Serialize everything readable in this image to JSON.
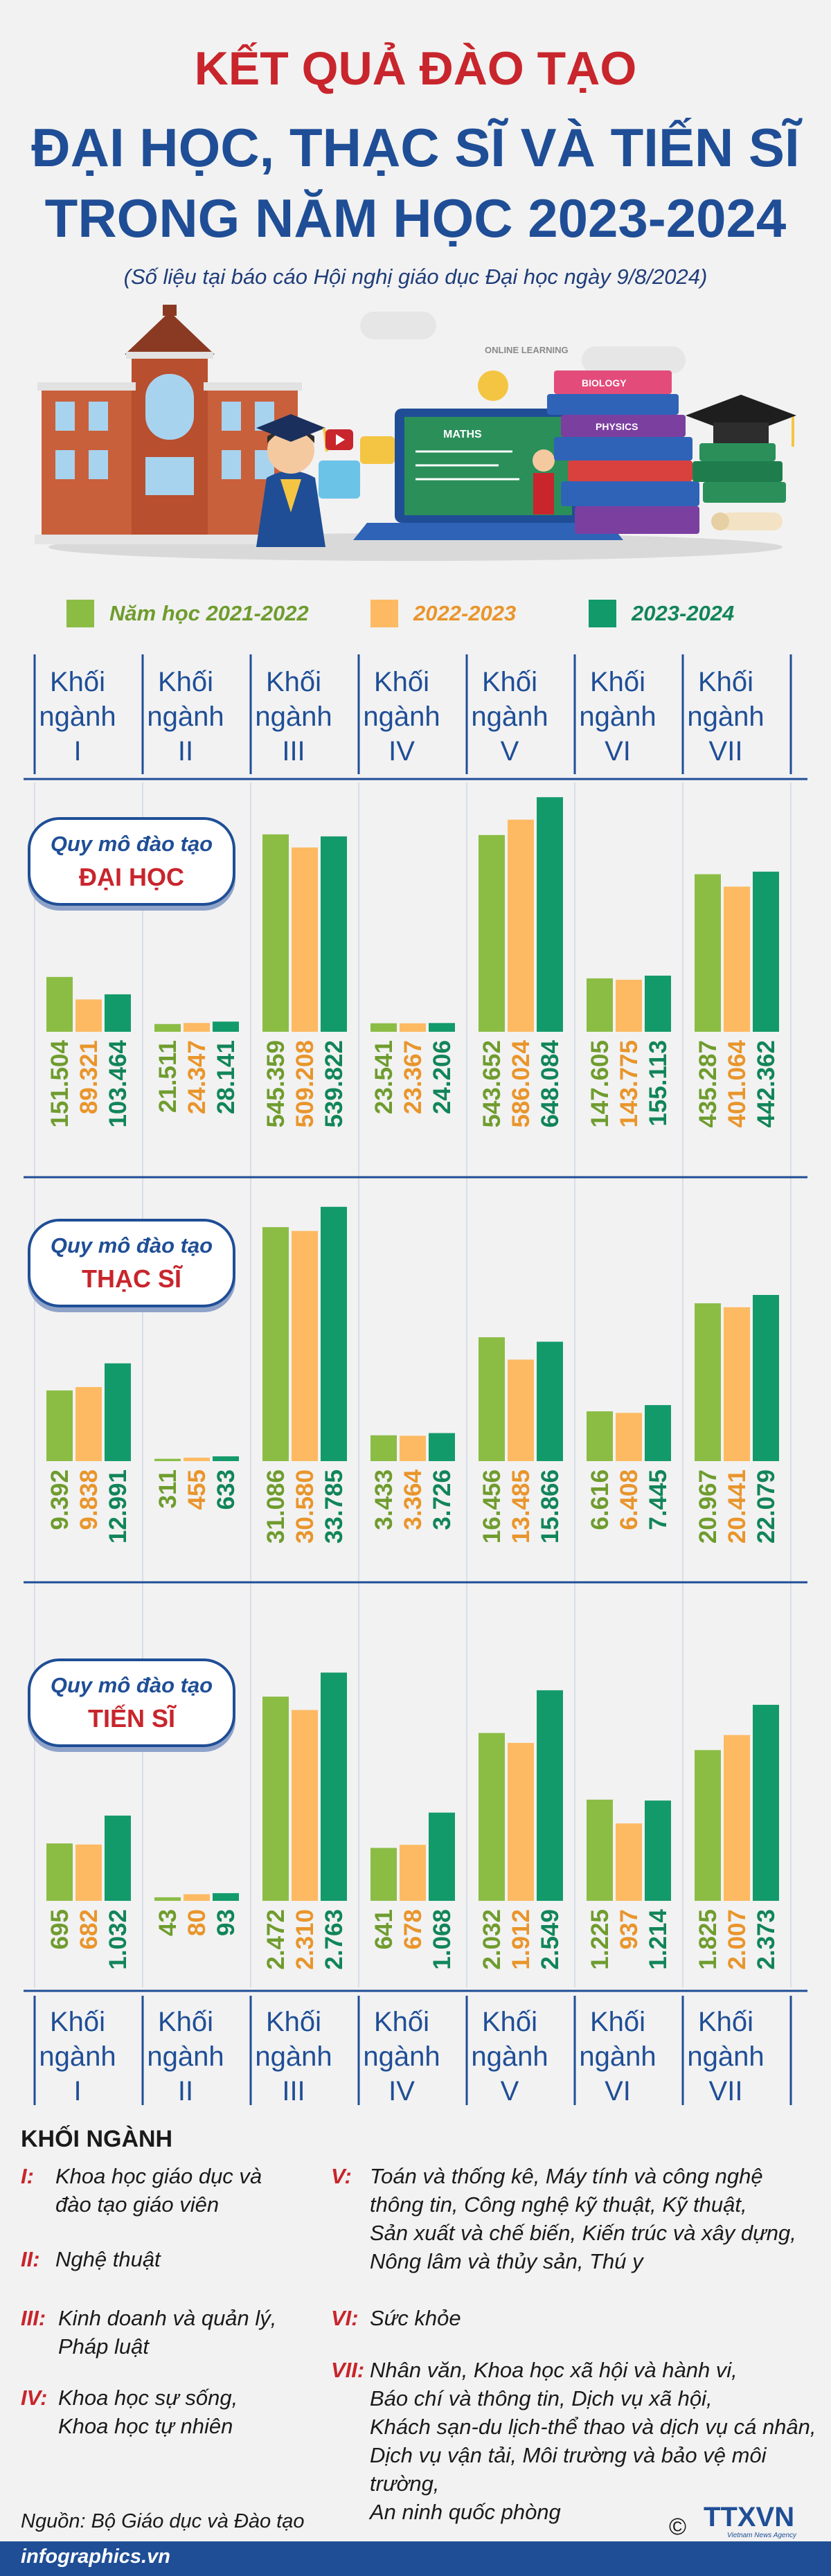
{
  "title_line1": "KẾT QUẢ ĐÀO TẠO",
  "title_line2": "ĐẠI HỌC, THẠC SĨ VÀ TIẾN SĨ",
  "title_line3": "TRONG NĂM HỌC 2023-2024",
  "subtitle": "(Số liệu tại báo cáo Hội nghị giáo dục Đại học ngày 9/8/2024)",
  "hero": {
    "math_board": "MATHS",
    "book_label": "BIOLOGY",
    "book_label2": "PHYSICS",
    "sign": "ONLINE LEARNING"
  },
  "colors": {
    "title_red": "#c8252c",
    "title_blue": "#1f4e96",
    "grid_line": "#1f4e96",
    "series_2021": "#8bbd45",
    "series_2022": "#fdba62",
    "series_2023": "#139a6b",
    "label_2021": "#6f9c2e",
    "label_2022": "#e9952b",
    "label_2023": "#118559"
  },
  "legend": [
    "Năm học 2021-2022",
    "2022-2023",
    "2023-2024"
  ],
  "group_headers": [
    [
      "Khối",
      "ngành",
      "I"
    ],
    [
      "Khối",
      "ngành",
      "II"
    ],
    [
      "Khối",
      "ngành",
      "III"
    ],
    [
      "Khối",
      "ngành",
      "IV"
    ],
    [
      "Khối",
      "ngành",
      "V"
    ],
    [
      "Khối",
      "ngành",
      "VI"
    ],
    [
      "Khối",
      "ngành",
      "VII"
    ]
  ],
  "chart_data": [
    {
      "type": "bar",
      "title": "Quy mô đào tạo ĐẠI HỌC",
      "badge_top": "Quy mô đào tạo",
      "badge_bottom": "ĐẠI HỌC",
      "categories": [
        "Khối ngành I",
        "Khối ngành II",
        "Khối ngành III",
        "Khối ngành IV",
        "Khối ngành V",
        "Khối ngành VI",
        "Khối ngành VII"
      ],
      "series": [
        {
          "name": "Năm học 2021-2022",
          "values": [
            151504,
            21511,
            545359,
            23541,
            543652,
            147605,
            435287
          ],
          "labels": [
            "151.504",
            "21.511",
            "545.359",
            "23.541",
            "543.652",
            "147.605",
            "435.287"
          ]
        },
        {
          "name": "2022-2023",
          "values": [
            89321,
            24347,
            509208,
            23367,
            586024,
            143775,
            401064
          ],
          "labels": [
            "89.321",
            "24.347",
            "509.208",
            "23.367",
            "586.024",
            "143.775",
            "401.064"
          ]
        },
        {
          "name": "2023-2024",
          "values": [
            103464,
            28141,
            539822,
            24206,
            648084,
            155113,
            442362
          ],
          "labels": [
            "103.464",
            "28.141",
            "539.822",
            "24.206",
            "648.084",
            "155.113",
            "442.362"
          ]
        }
      ],
      "ylim": [
        0,
        660000
      ]
    },
    {
      "type": "bar",
      "title": "Quy mô đào tạo THẠC SĨ",
      "badge_top": "Quy mô đào tạo",
      "badge_bottom": "THẠC SĨ",
      "categories": [
        "Khối ngành I",
        "Khối ngành II",
        "Khối ngành III",
        "Khối ngành IV",
        "Khối ngành V",
        "Khối ngành VI",
        "Khối ngành VII"
      ],
      "series": [
        {
          "name": "Năm học 2021-2022",
          "values": [
            9392,
            311,
            31086,
            3433,
            16456,
            6616,
            20967
          ],
          "labels": [
            "9.392",
            "311",
            "31.086",
            "3.433",
            "16.456",
            "6.616",
            "20.967"
          ]
        },
        {
          "name": "2022-2023",
          "values": [
            9838,
            455,
            30580,
            3364,
            13485,
            6408,
            20441
          ],
          "labels": [
            "9.838",
            "455",
            "30.580",
            "3.364",
            "13.485",
            "6.408",
            "20.441"
          ]
        },
        {
          "name": "2023-2024",
          "values": [
            12991,
            633,
            33785,
            3726,
            15866,
            7445,
            22079
          ],
          "labels": [
            "12.991",
            "633",
            "33.785",
            "3.726",
            "15.866",
            "7.445",
            "22.079"
          ]
        }
      ],
      "ylim": [
        0,
        34500
      ]
    },
    {
      "type": "bar",
      "title": "Quy mô đào tạo TIẾN SĨ",
      "badge_top": "Quy mô đào tạo",
      "badge_bottom": "TIẾN SĨ",
      "categories": [
        "Khối ngành I",
        "Khối ngành II",
        "Khối ngành III",
        "Khối ngành IV",
        "Khối ngành V",
        "Khối ngành VI",
        "Khối ngành VII"
      ],
      "series": [
        {
          "name": "Năm học 2021-2022",
          "values": [
            695,
            43,
            2472,
            641,
            2032,
            1225,
            1825
          ],
          "labels": [
            "695",
            "43",
            "2.472",
            "641",
            "2.032",
            "1.225",
            "1.825"
          ]
        },
        {
          "name": "2022-2023",
          "values": [
            682,
            80,
            2310,
            678,
            1912,
            937,
            2007
          ],
          "labels": [
            "682",
            "80",
            "2.310",
            "678",
            "1.912",
            "937",
            "2.007"
          ]
        },
        {
          "name": "2023-2024",
          "values": [
            1032,
            93,
            2763,
            1068,
            2549,
            1214,
            2373
          ],
          "labels": [
            "1.032",
            "93",
            "2.763",
            "1.068",
            "2.549",
            "1.214",
            "2.373"
          ]
        }
      ],
      "ylim": [
        0,
        2850
      ]
    }
  ],
  "key_title": "KHỐI NGÀNH",
  "key_items": [
    {
      "code": "I:",
      "lines": [
        "Khoa học giáo dục và",
        "đào tạo giáo viên"
      ]
    },
    {
      "code": "II:",
      "lines": [
        "Nghệ thuật"
      ]
    },
    {
      "code": "III:",
      "lines": [
        "Kinh doanh và quản lý,",
        "Pháp luật"
      ]
    },
    {
      "code": "IV:",
      "lines": [
        "Khoa học sự sống,",
        "Khoa học tự nhiên"
      ]
    },
    {
      "code": "V:",
      "lines": [
        "Toán và thống kê, Máy tính và công nghệ",
        "thông tin, Công nghệ kỹ thuật, Kỹ thuật,",
        "Sản xuất và chế biến, Kiến trúc và xây dựng,",
        "Nông lâm và thủy sản, Thú y"
      ]
    },
    {
      "code": "VI:",
      "lines": [
        "Sức khỏe"
      ]
    },
    {
      "code": "VII:",
      "lines": [
        "Nhân văn, Khoa học xã hội và hành vi,",
        "Báo chí và thông tin, Dịch vụ xã hội,",
        "Khách sạn-du lịch-thể thao và dịch vụ cá nhân,",
        "Dịch vụ vận tải, Môi trường và bảo vệ môi trường,",
        "An ninh quốc phòng"
      ]
    }
  ],
  "source": "Nguồn: Bộ Giáo dục và Đào tạo",
  "footer_site": "infographics.vn",
  "copyright_symbol": "©",
  "logo_text": "TTXVN",
  "logo_subtext": "Vietnam News Agency"
}
